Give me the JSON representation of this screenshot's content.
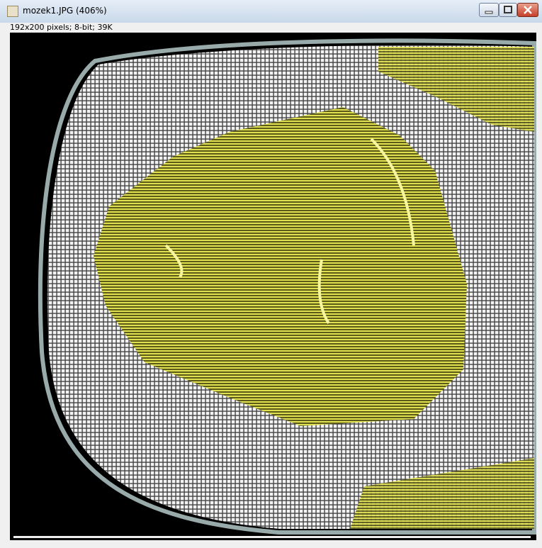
{
  "window": {
    "title": "mozek1.JPG (406%)",
    "info": "192x200 pixels; 8-bit; 39K"
  }
}
